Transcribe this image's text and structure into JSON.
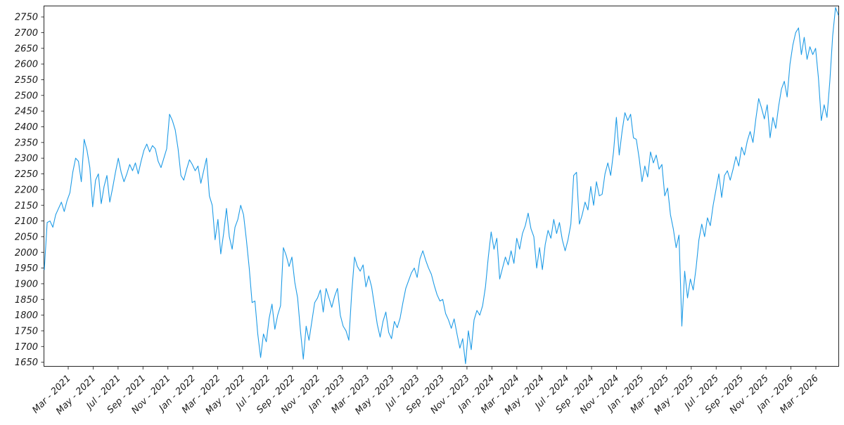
{
  "figure": {
    "background": "#ffffff",
    "frame_color": "#262626"
  },
  "chart_data": {
    "type": "line",
    "title": "",
    "xlabel": "",
    "ylabel": "",
    "legend": "none",
    "grid": false,
    "line_color": "#1e9be6",
    "line_width": 1.1,
    "ylim": [
      1638,
      2786
    ],
    "y_tick_labels": [
      2750,
      2700,
      2650,
      2600,
      2550,
      2500,
      2450,
      2400,
      2350,
      2300,
      2250,
      2200,
      2150,
      2100,
      2050,
      2000,
      1950,
      1900,
      1850,
      1800,
      1750,
      1700,
      1650
    ],
    "x_tick_labels": [
      "Mar - 2021",
      "May - 2021",
      "Jul - 2021",
      "Sep - 2021",
      "Nov - 2021",
      "Jan - 2022",
      "Mar - 2022",
      "May - 2022",
      "Jul - 2022",
      "Sep - 2022",
      "Nov - 2022",
      "Jan - 2023",
      "Mar - 2023",
      "May - 2023",
      "Jul - 2023",
      "Sep - 2023",
      "Nov - 2023",
      "Jan - 2024",
      "Mar - 2024",
      "May - 2024",
      "Jul - 2024",
      "Sep - 2024",
      "Nov - 2024",
      "Jan - 2025",
      "Mar - 2025",
      "May - 2025",
      "Jul - 2025",
      "Sep - 2025",
      "Nov - 2025",
      "Jan - 2026",
      "Mar - 2026"
    ],
    "x_range_note": "weekly samples, Jan 2021 through Apr 2026",
    "values": [
      1945,
      2095,
      2100,
      2080,
      2120,
      2140,
      2160,
      2130,
      2165,
      2190,
      2255,
      2300,
      2290,
      2225,
      2360,
      2325,
      2270,
      2145,
      2230,
      2250,
      2155,
      2210,
      2245,
      2160,
      2205,
      2255,
      2300,
      2255,
      2225,
      2250,
      2280,
      2260,
      2285,
      2250,
      2290,
      2325,
      2345,
      2320,
      2340,
      2330,
      2290,
      2270,
      2300,
      2330,
      2440,
      2420,
      2390,
      2330,
      2245,
      2230,
      2265,
      2295,
      2280,
      2260,
      2275,
      2220,
      2260,
      2300,
      2180,
      2150,
      2040,
      2105,
      1995,
      2060,
      2140,
      2050,
      2010,
      2080,
      2105,
      2150,
      2120,
      2040,
      1950,
      1840,
      1845,
      1740,
      1665,
      1740,
      1715,
      1790,
      1835,
      1755,
      1800,
      1830,
      2015,
      1990,
      1955,
      1985,
      1905,
      1855,
      1750,
      1660,
      1765,
      1720,
      1780,
      1840,
      1855,
      1880,
      1810,
      1885,
      1855,
      1825,
      1860,
      1885,
      1800,
      1765,
      1750,
      1720,
      1870,
      1985,
      1955,
      1940,
      1960,
      1890,
      1925,
      1890,
      1830,
      1770,
      1730,
      1780,
      1810,
      1745,
      1725,
      1780,
      1760,
      1790,
      1840,
      1885,
      1910,
      1935,
      1950,
      1920,
      1980,
      2005,
      1975,
      1950,
      1930,
      1895,
      1865,
      1845,
      1850,
      1805,
      1785,
      1758,
      1788,
      1740,
      1695,
      1725,
      1645,
      1750,
      1690,
      1785,
      1815,
      1800,
      1830,
      1890,
      1985,
      2065,
      2010,
      2045,
      1915,
      1950,
      1985,
      1960,
      2005,
      1965,
      2045,
      2010,
      2060,
      2085,
      2125,
      2075,
      2050,
      1950,
      2015,
      1945,
      2025,
      2070,
      2045,
      2105,
      2060,
      2095,
      2040,
      2005,
      2040,
      2090,
      2245,
      2255,
      2090,
      2120,
      2160,
      2135,
      2210,
      2150,
      2225,
      2180,
      2185,
      2250,
      2285,
      2245,
      2320,
      2430,
      2310,
      2385,
      2445,
      2420,
      2440,
      2365,
      2360,
      2300,
      2225,
      2275,
      2240,
      2320,
      2285,
      2310,
      2265,
      2280,
      2180,
      2205,
      2120,
      2075,
      2015,
      2055,
      1765,
      1940,
      1855,
      1915,
      1880,
      1950,
      2040,
      2090,
      2050,
      2110,
      2085,
      2150,
      2200,
      2250,
      2175,
      2245,
      2260,
      2230,
      2265,
      2305,
      2275,
      2335,
      2310,
      2355,
      2385,
      2350,
      2425,
      2490,
      2460,
      2425,
      2470,
      2365,
      2430,
      2395,
      2465,
      2520,
      2545,
      2495,
      2600,
      2660,
      2700,
      2715,
      2630,
      2685,
      2615,
      2655,
      2630,
      2650,
      2555,
      2420,
      2470,
      2430,
      2545,
      2690,
      2780,
      2755
    ]
  }
}
